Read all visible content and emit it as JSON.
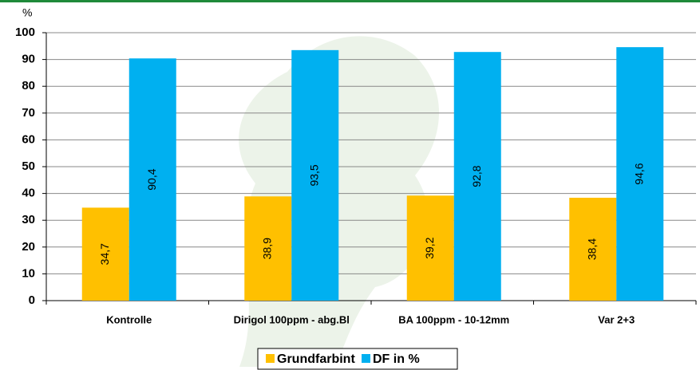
{
  "chart_data": {
    "type": "bar",
    "y_label": "%",
    "categories": [
      "Kontrolle",
      "Dirigol 100ppm - abg.Bl",
      "BA 100ppm - 10-12mm",
      "Var 2+3"
    ],
    "series": [
      {
        "name": "Grundfarbint",
        "color": "#ffc000",
        "values": [
          34.7,
          38.9,
          39.2,
          38.4
        ],
        "value_labels": [
          "34,7",
          "38,9",
          "39,2",
          "38,4"
        ]
      },
      {
        "name": "DF in %",
        "color": "#00b0f0",
        "values": [
          90.4,
          93.5,
          92.8,
          94.6
        ],
        "value_labels": [
          "90,4",
          "93,5",
          "92,8",
          "94,6"
        ]
      }
    ],
    "ylim": [
      0,
      100
    ],
    "yticks": [
      0,
      10,
      20,
      30,
      40,
      50,
      60,
      70,
      80,
      90,
      100
    ],
    "grid": true
  }
}
